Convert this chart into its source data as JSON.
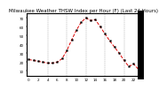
{
  "title": "Milwaukee Weather THSW Index per Hour (F) (Last 24 Hours)",
  "hours": [
    0,
    1,
    2,
    3,
    4,
    5,
    6,
    7,
    8,
    9,
    10,
    11,
    12,
    13,
    14,
    15,
    16,
    17,
    18,
    19,
    20,
    21,
    22,
    23
  ],
  "values": [
    23,
    22,
    21,
    20,
    19,
    19,
    20,
    24,
    33,
    45,
    56,
    65,
    70,
    67,
    68,
    60,
    52,
    44,
    37,
    30,
    22,
    15,
    18,
    12
  ],
  "line_color": "#dd0000",
  "marker_color": "#000000",
  "bg_color": "#ffffff",
  "grid_color": "#999999",
  "ylim": [
    5,
    75
  ],
  "yticks": [
    10,
    20,
    30,
    40,
    50,
    60,
    70
  ],
  "ytick_labels": [
    "10",
    "20",
    "30",
    "40",
    "50",
    "60",
    "70"
  ],
  "title_fontsize": 4.0,
  "tick_fontsize": 3.0,
  "line_width": 0.7,
  "marker_size": 1.2,
  "grid_linewidth": 0.3,
  "right_bar_color": "#000000",
  "right_bar_width": 4
}
